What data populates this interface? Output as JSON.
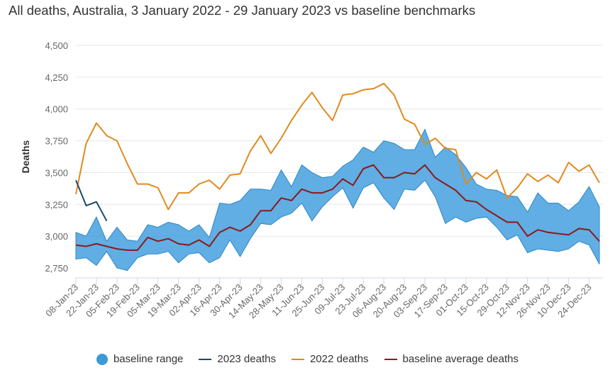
{
  "chart_data": {
    "type": "line",
    "title": "All deaths, Australia, 3 January 2022 - 29 January 2023 vs baseline benchmarks",
    "ylabel": "Deaths",
    "xlabel": "",
    "ylim": [
      2750,
      4500
    ],
    "yticks": [
      2750,
      3000,
      3250,
      3500,
      3750,
      4000,
      4250,
      4500
    ],
    "ytick_labels": [
      "2,750",
      "3,000",
      "3,250",
      "3,500",
      "3,750",
      "4,000",
      "4,250",
      "4,500"
    ],
    "x_tick_labels": [
      "08-Jan-23",
      "22-Jan-23",
      "05-Feb-23",
      "19-Feb-23",
      "05-Mar-23",
      "19-Mar-23",
      "02-Apr-23",
      "16-Apr-23",
      "30-Apr-23",
      "14-May-23",
      "28-May-23",
      "11-Jun-23",
      "25-Jun-23",
      "09-Jul-23",
      "23-Jul-23",
      "06-Aug-23",
      "20-Aug-23",
      "03-Sep-23",
      "17-Sep-23",
      "01-Oct-23",
      "15-Oct-23",
      "29-Oct-23",
      "12-Nov-23",
      "26-Nov-23",
      "10-Dec-23",
      "24-Dec-23"
    ],
    "grid": true,
    "legend_position": "bottom",
    "baseline_range_upper": [
      3030,
      3000,
      3150,
      2960,
      3070,
      2970,
      2960,
      3090,
      3070,
      3110,
      3090,
      3040,
      3090,
      2990,
      3260,
      3250,
      3280,
      3370,
      3370,
      3360,
      3520,
      3390,
      3560,
      3500,
      3460,
      3470,
      3550,
      3600,
      3700,
      3660,
      3750,
      3730,
      3680,
      3680,
      3840,
      3620,
      3700,
      3640,
      3540,
      3410,
      3370,
      3360,
      3320,
      3310,
      3190,
      3340,
      3260,
      3260,
      3200,
      3270,
      3390,
      3230
    ],
    "baseline_range_lower": [
      2820,
      2830,
      2770,
      2880,
      2750,
      2730,
      2830,
      2860,
      2860,
      2880,
      2790,
      2860,
      2870,
      2790,
      2830,
      2970,
      2840,
      2980,
      3100,
      3090,
      3150,
      3180,
      3260,
      3120,
      3230,
      3310,
      3380,
      3220,
      3380,
      3420,
      3300,
      3210,
      3370,
      3360,
      3440,
      3310,
      3100,
      3150,
      3110,
      3140,
      3150,
      3070,
      2970,
      3010,
      2870,
      2900,
      2890,
      2880,
      2900,
      2960,
      2930,
      2780
    ],
    "series": [
      {
        "name": "baseline range",
        "color": "#3b9ad8"
      },
      {
        "name": "2023 deaths",
        "color": "#1a4a6b",
        "start_index": 0,
        "values": [
          3440,
          3240,
          3270,
          3120
        ]
      },
      {
        "name": "2022 deaths",
        "color": "#e08a1e",
        "start_index": 0,
        "values": [
          3330,
          3730,
          3890,
          3790,
          3750,
          3570,
          3410,
          3410,
          3380,
          3210,
          3340,
          3340,
          3410,
          3440,
          3370,
          3480,
          3490,
          3670,
          3790,
          3650,
          3770,
          3910,
          4030,
          4130,
          4010,
          3910,
          4110,
          4120,
          4150,
          4160,
          4200,
          4110,
          3920,
          3880,
          3720,
          3770,
          3690,
          3680,
          3410,
          3500,
          3450,
          3520,
          3300,
          3380,
          3490,
          3430,
          3480,
          3420,
          3580,
          3510,
          3560,
          3420
        ]
      },
      {
        "name": "baseline average deaths",
        "color": "#8b1a1a",
        "values": [
          2930,
          2920,
          2940,
          2920,
          2900,
          2890,
          2890,
          2990,
          2960,
          2980,
          2940,
          2930,
          2970,
          2920,
          3030,
          3070,
          3040,
          3090,
          3200,
          3200,
          3300,
          3280,
          3370,
          3340,
          3340,
          3370,
          3450,
          3400,
          3530,
          3560,
          3460,
          3460,
          3500,
          3490,
          3560,
          3460,
          3410,
          3360,
          3280,
          3270,
          3210,
          3160,
          3110,
          3110,
          3000,
          3050,
          3030,
          3020,
          3010,
          3060,
          3050,
          2960
        ]
      }
    ]
  }
}
